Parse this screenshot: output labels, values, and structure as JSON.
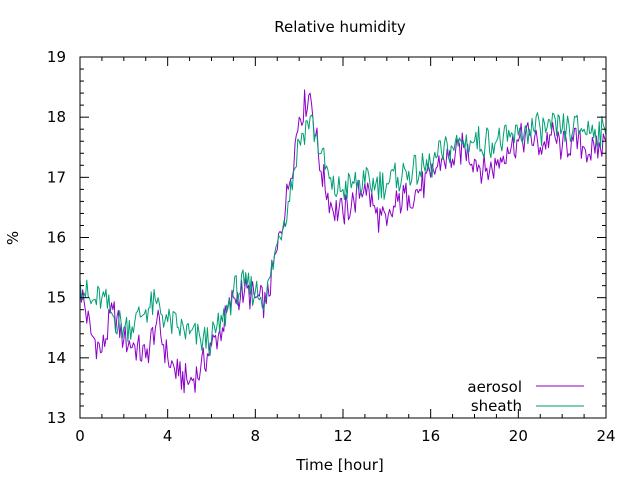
{
  "chart_data": {
    "type": "line",
    "title": "Relative humidity",
    "xlabel": "Time [hour]",
    "ylabel": "%",
    "xlim": [
      0,
      24
    ],
    "ylim": [
      13,
      19
    ],
    "xticks": [
      0,
      4,
      8,
      12,
      16,
      20,
      24
    ],
    "xtick_labels": [
      "0",
      "4",
      "8",
      "12",
      "16",
      "20",
      "24"
    ],
    "yticks": [
      13,
      14,
      15,
      16,
      17,
      18,
      19
    ],
    "ytick_labels": [
      "13",
      "14",
      "15",
      "16",
      "17",
      "18",
      "19"
    ],
    "grid": false,
    "legend_position": "bottom-right",
    "series": [
      {
        "name": "aerosol",
        "color": "#8b00c8",
        "x": [
          0,
          0.5,
          1,
          1.5,
          2,
          2.5,
          3,
          3.5,
          4,
          4.5,
          5,
          5.5,
          6,
          6.5,
          7,
          7.5,
          8,
          8.5,
          9,
          9.5,
          10,
          10.5,
          11,
          11.5,
          12,
          12.5,
          13,
          13.5,
          14,
          14.5,
          15,
          15.5,
          16,
          16.5,
          17,
          17.5,
          18,
          18.5,
          19,
          19.5,
          20,
          20.5,
          21,
          21.5,
          22,
          22.5,
          23,
          23.5,
          24
        ],
        "values": [
          15.2,
          14.4,
          14.1,
          14.8,
          14.3,
          14.2,
          14.0,
          14.6,
          14.0,
          13.7,
          13.6,
          13.8,
          14.2,
          14.5,
          15.0,
          15.1,
          15.0,
          14.9,
          15.8,
          16.8,
          18.0,
          18.4,
          17.1,
          16.5,
          16.4,
          16.6,
          16.9,
          16.4,
          16.2,
          16.6,
          16.7,
          16.8,
          17.0,
          17.3,
          17.3,
          17.5,
          17.3,
          17.1,
          17.2,
          17.5,
          17.6,
          17.7,
          17.5,
          17.7,
          17.5,
          17.6,
          17.5,
          17.4,
          17.6
        ]
      },
      {
        "name": "sheath",
        "color": "#009e73",
        "x": [
          0,
          0.5,
          1,
          1.5,
          2,
          2.5,
          3,
          3.5,
          4,
          4.5,
          5,
          5.5,
          6,
          6.5,
          7,
          7.5,
          8,
          8.5,
          9,
          9.5,
          10,
          10.5,
          11,
          11.5,
          12,
          12.5,
          13,
          13.5,
          14,
          14.5,
          15,
          15.5,
          16,
          16.5,
          17,
          17.5,
          18,
          18.5,
          19,
          19.5,
          20,
          20.5,
          21,
          21.5,
          22,
          22.5,
          23,
          23.5,
          24
        ],
        "values": [
          15.3,
          14.9,
          15.0,
          14.7,
          14.5,
          14.6,
          14.8,
          14.9,
          14.6,
          14.5,
          14.4,
          14.3,
          14.3,
          14.6,
          15.1,
          15.2,
          15.1,
          15.0,
          15.9,
          16.6,
          17.6,
          18.0,
          17.4,
          16.8,
          16.8,
          16.9,
          16.9,
          16.9,
          16.9,
          17.0,
          17.1,
          17.1,
          17.2,
          17.4,
          17.5,
          17.6,
          17.6,
          17.6,
          17.6,
          17.6,
          17.7,
          17.8,
          17.8,
          17.8,
          17.8,
          17.8,
          17.8,
          17.8,
          17.7
        ]
      }
    ]
  }
}
